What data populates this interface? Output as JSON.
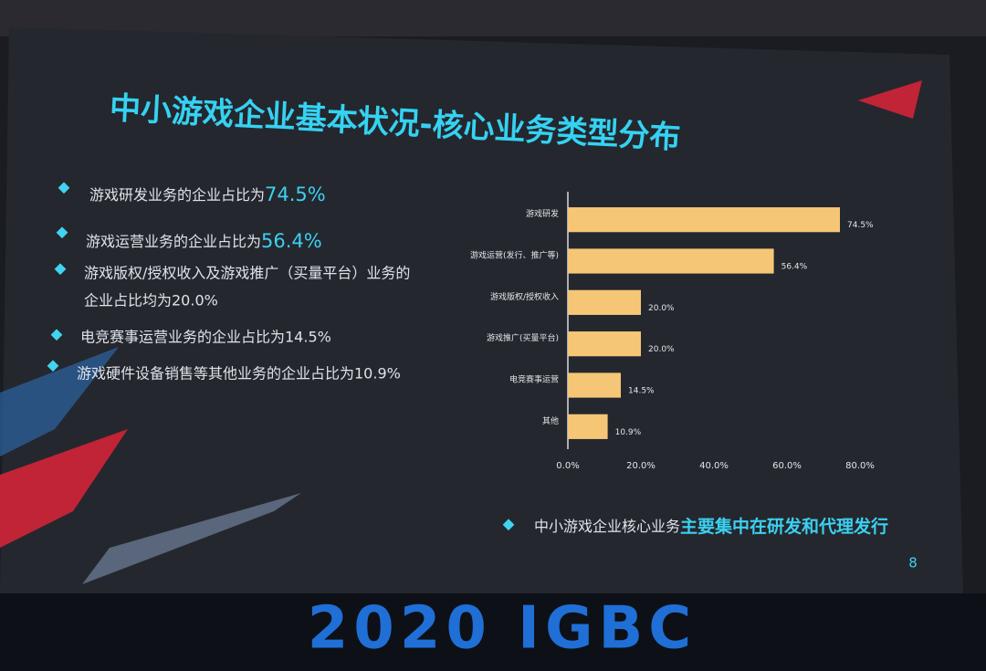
{
  "chart_data": {
    "type": "bar",
    "orientation": "horizontal",
    "title": "中小游戏企业基本状况-核心业务类型分布",
    "categories": [
      "游戏研发",
      "游戏运营(发行、推广等)",
      "游戏版权/授权收入",
      "游戏推广(买量平台)",
      "电竞赛事运营",
      "其他"
    ],
    "values": [
      74.5,
      56.4,
      20.0,
      20.0,
      14.5,
      10.9
    ],
    "value_labels": [
      "74.5%",
      "56.4%",
      "20.0%",
      "20.0%",
      "14.5%",
      "10.9%"
    ],
    "color": "#f6c677",
    "xlim": [
      0,
      80
    ],
    "xticks": [
      {
        "value": 0,
        "label": "0.0%"
      },
      {
        "value": 20,
        "label": "20.0%"
      },
      {
        "value": 40,
        "label": "40.0%"
      },
      {
        "value": 60,
        "label": "60.0%"
      },
      {
        "value": 80,
        "label": "80.0%"
      }
    ],
    "grid": false
  },
  "bullets": [
    {
      "text": "游戏研发业务的企业占比为",
      "highlight": "74.5%"
    },
    {
      "text": "游戏运营业务的企业占比为",
      "highlight": "56.4%"
    },
    {
      "text": "游戏版权/授权收入及游戏推广（买量平台）业务的",
      "text2": "企业占比均为20.0%"
    },
    {
      "text": "电竞赛事运营业务的企业占比为14.5%"
    },
    {
      "text": "游戏硬件设备销售等其他业务的企业占比为10.9%"
    }
  ],
  "conclusion": {
    "text": "中小游戏企业核心业务",
    "highlight": "主要集中在研发和代理发行"
  },
  "page_number": "8",
  "banner": "2020 IGBC"
}
